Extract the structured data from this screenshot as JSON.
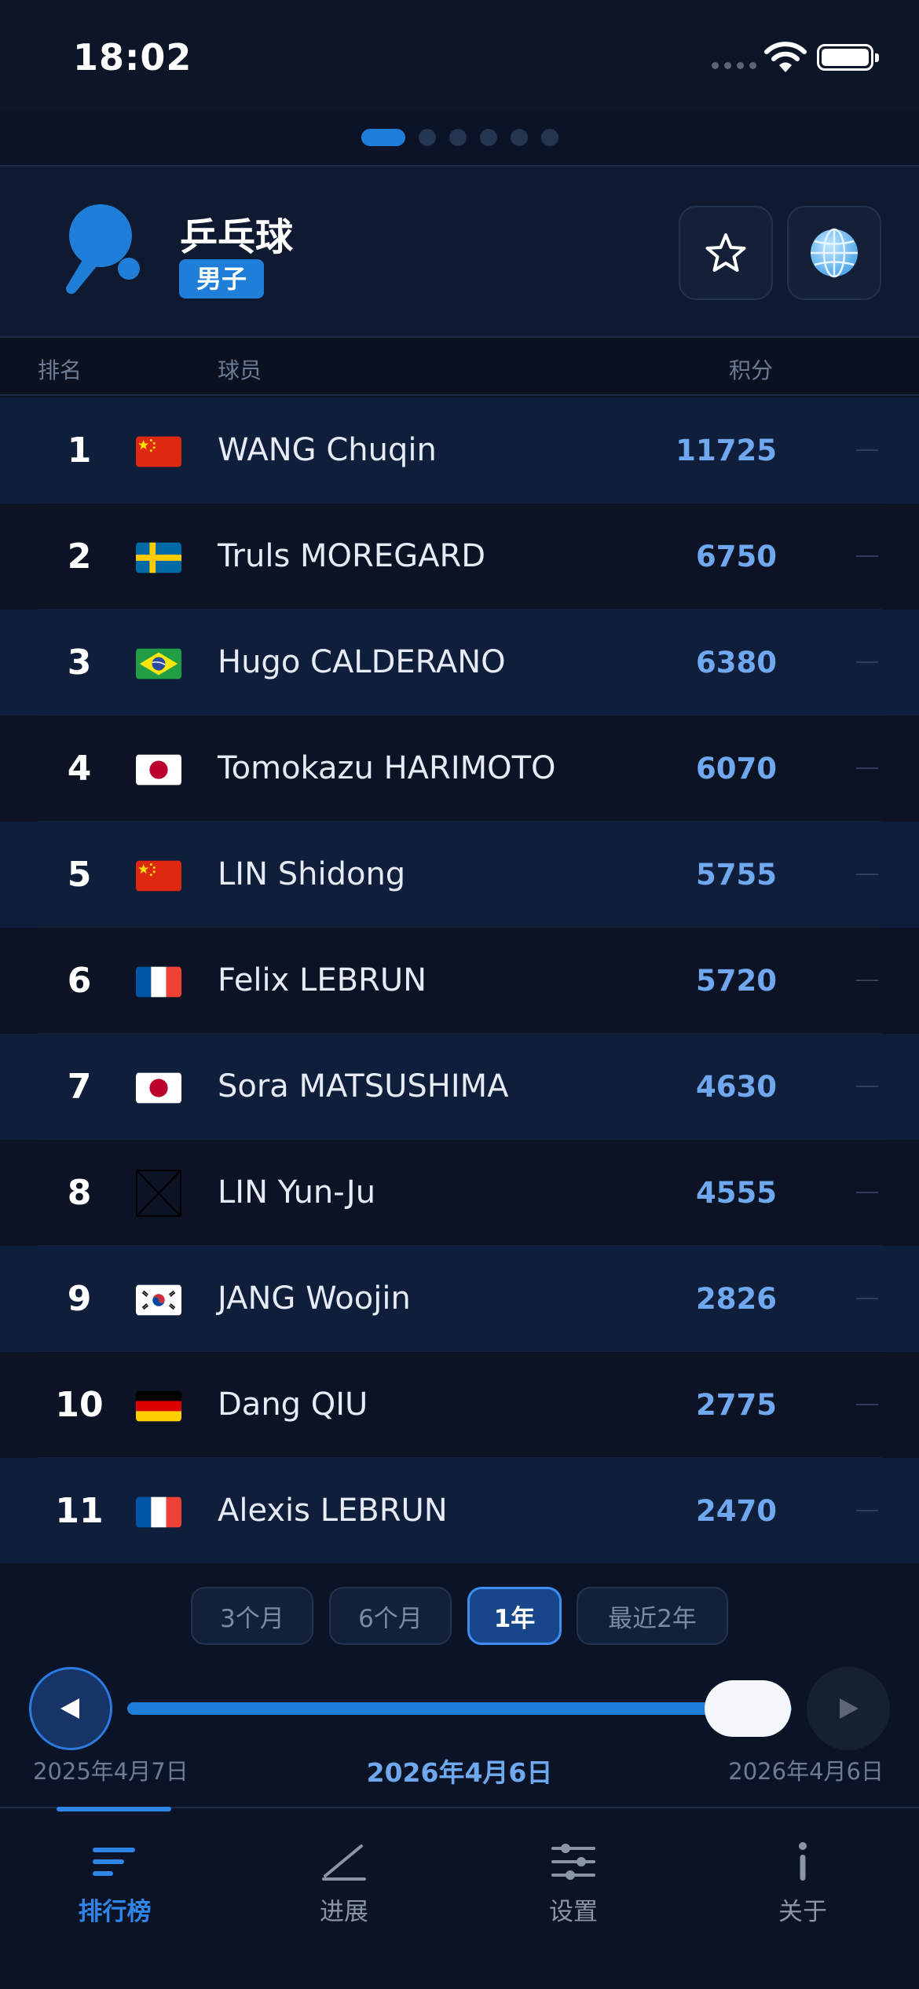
{
  "status_bar": {
    "time": "18:02"
  },
  "pager": {
    "count": 6,
    "active": 0
  },
  "header": {
    "title": "乒乓球",
    "badge": "男子"
  },
  "columns": {
    "rank": "排名",
    "player": "球员",
    "points": "积分"
  },
  "rankings": [
    {
      "rank": "1",
      "flag": "china",
      "name": "WANG Chuqin",
      "points": "11725",
      "change": "—"
    },
    {
      "rank": "2",
      "flag": "sweden",
      "name": "Truls MOREGARD",
      "points": "6750",
      "change": "—"
    },
    {
      "rank": "3",
      "flag": "brazil",
      "name": "Hugo CALDERANO",
      "points": "6380",
      "change": "—"
    },
    {
      "rank": "4",
      "flag": "japan",
      "name": "Tomokazu HARIMOTO",
      "points": "6070",
      "change": "—"
    },
    {
      "rank": "5",
      "flag": "china",
      "name": "LIN Shidong",
      "points": "5755",
      "change": "—"
    },
    {
      "rank": "6",
      "flag": "france",
      "name": "Felix LEBRUN",
      "points": "5720",
      "change": "—"
    },
    {
      "rank": "7",
      "flag": "japan",
      "name": "Sora MATSUSHIMA",
      "points": "4630",
      "change": "—"
    },
    {
      "rank": "8",
      "flag": "missing",
      "name": "LIN Yun-Ju",
      "points": "4555",
      "change": "—"
    },
    {
      "rank": "9",
      "flag": "korea",
      "name": "JANG Woojin",
      "points": "2826",
      "change": "—"
    },
    {
      "rank": "10",
      "flag": "germany",
      "name": "Dang QIU",
      "points": "2775",
      "change": "—"
    },
    {
      "rank": "11",
      "flag": "france",
      "name": "Alexis LEBRUN",
      "points": "2470",
      "change": "—"
    }
  ],
  "range_options": [
    {
      "label": "3个月",
      "active": false
    },
    {
      "label": "6个月",
      "active": false
    },
    {
      "label": "1年",
      "active": true
    },
    {
      "label": "最近2年",
      "active": false
    }
  ],
  "timeline": {
    "start_date": "2025年4月7日",
    "current_date": "2026年4月6日",
    "end_date": "2026年4月6日",
    "position": 1.0
  },
  "tabs": [
    {
      "label": "排行榜",
      "icon": "list-icon",
      "active": true
    },
    {
      "label": "进展",
      "icon": "progress-chart-icon",
      "active": false
    },
    {
      "label": "设置",
      "icon": "sliders-icon",
      "active": false
    },
    {
      "label": "关于",
      "icon": "info-icon",
      "active": false
    }
  ],
  "colors": {
    "accent": "#1f7fd8",
    "points": "#6fa8ef",
    "background": "#0b1426"
  }
}
